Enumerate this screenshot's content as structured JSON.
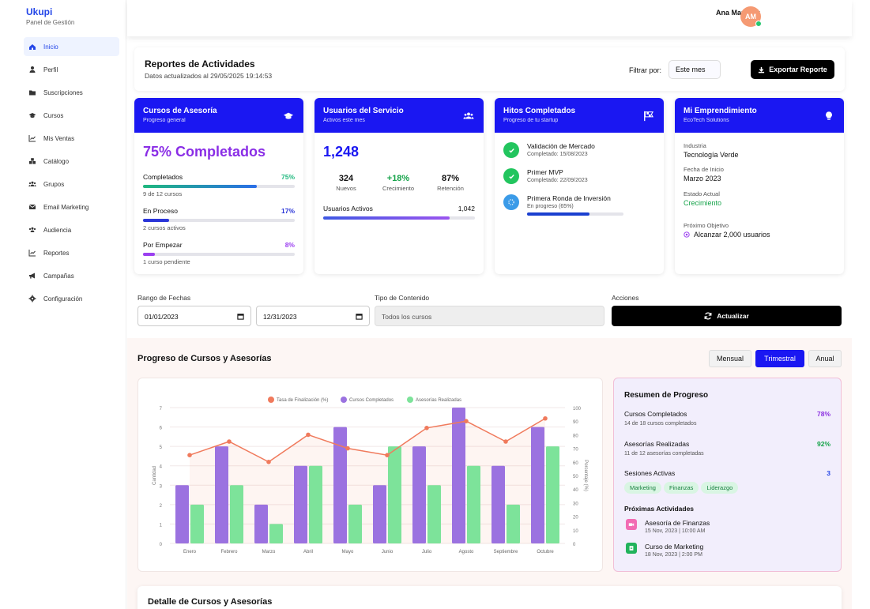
{
  "brand": {
    "name": "Ukupi",
    "subtitle": "Panel de Gestión"
  },
  "sidebar": {
    "items": [
      {
        "label": "Inicio",
        "icon": "home-icon",
        "active": true
      },
      {
        "label": "Perfil",
        "icon": "user-icon"
      },
      {
        "label": "Suscripciones",
        "icon": "folder-icon"
      },
      {
        "label": "Cursos",
        "icon": "graduation-cap-icon"
      },
      {
        "label": "Mis Ventas",
        "icon": "line-chart-icon"
      },
      {
        "label": "Catálogo",
        "icon": "boxes-icon"
      },
      {
        "label": "Grupos",
        "icon": "users-icon"
      },
      {
        "label": "Email Marketing",
        "icon": "envelope-icon"
      },
      {
        "label": "Audiencia",
        "icon": "audience-icon"
      },
      {
        "label": "Reportes",
        "icon": "chart-icon"
      },
      {
        "label": "Campañas",
        "icon": "megaphone-icon"
      },
      {
        "label": "Configuración",
        "icon": "gear-icon"
      }
    ]
  },
  "topbar": {
    "user_name": "Ana Martinez",
    "avatar_initials": "AM"
  },
  "header": {
    "title": "Reportes de Actividades",
    "updated": "Datos actualizados al 29/05/2025 19:14:53",
    "filter_label": "Filtrar por:",
    "filter_value": "Este mes",
    "export_label": "Exportar Reporte"
  },
  "cards": {
    "cursos": {
      "title": "Cursos de Asesoría",
      "subtitle": "Progreso general",
      "headline": "75% Completados",
      "rows": [
        {
          "label": "Completados",
          "pct": "75%",
          "value": 0.75,
          "sub": "9 de 12 cursos",
          "color": "#1fb87e"
        },
        {
          "label": "En Proceso",
          "pct": "17%",
          "value": 0.17,
          "sub": "2 cursos activos",
          "color": "#2a35d8"
        },
        {
          "label": "Por Empezar",
          "pct": "8%",
          "value": 0.08,
          "sub": "1 curso pendiente",
          "color": "#9b3ff0"
        }
      ]
    },
    "usuarios": {
      "title": "Usuarios del Servicio",
      "subtitle": "Activos este mes",
      "total": "1,248",
      "kpis": [
        {
          "value": "324",
          "label": "Nuevos"
        },
        {
          "value": "+18%",
          "label": "Crecimiento"
        },
        {
          "value": "87%",
          "label": "Retención"
        }
      ],
      "active_label": "Usuarios Activos",
      "active_value": "1,042",
      "active_ratio": 0.834
    },
    "hitos": {
      "title": "Hitos Completados",
      "subtitle": "Progreso de tu startup",
      "items": [
        {
          "label": "Validación de Mercado",
          "sub": "Completado: 15/08/2023",
          "done": true
        },
        {
          "label": "Primer MVP",
          "sub": "Completado: 22/09/2023",
          "done": true
        },
        {
          "label": "Primera Ronda de Inversión",
          "sub": "En progreso (65%)",
          "done": false,
          "progress": 0.65
        }
      ]
    },
    "empr": {
      "title": "Mi Emprendimiento",
      "subtitle": "EcoTech Solutions",
      "fields": [
        {
          "k": "Industria",
          "v": "Tecnología Verde"
        },
        {
          "k": "Fecha de Inicio",
          "v": "Marzo 2023"
        },
        {
          "k": "Estado Actual",
          "v": "Crecimiento"
        },
        {
          "k": "Próximo Objetivo",
          "v": "Alcanzar 2,000 usuarios"
        }
      ]
    }
  },
  "filters": {
    "range_label": "Rango de Fechas",
    "date_from": "01/01/2023",
    "date_to": "12/31/2023",
    "type_label": "Tipo de Contenido",
    "type_value": "Todos los cursos",
    "actions_label": "Acciones",
    "refresh_label": "Actualizar"
  },
  "progress": {
    "title": "Progreso de Cursos y Asesorías",
    "toggles": [
      "Mensual",
      "Trimestral",
      "Anual"
    ],
    "active_toggle": "Trimestral"
  },
  "chart_data": {
    "type": "bar",
    "categories": [
      "Enero",
      "Febrero",
      "Marzo",
      "Abril",
      "Mayo",
      "Junio",
      "Julio",
      "Agosto",
      "Septiembre",
      "Octubre"
    ],
    "series": [
      {
        "name": "Cursos Completados",
        "type": "bar",
        "color": "#9b72e0",
        "values": [
          3,
          5,
          2,
          4,
          6,
          3,
          5,
          7,
          4,
          6
        ]
      },
      {
        "name": "Asesorías Realizadas",
        "type": "bar",
        "color": "#7de39a",
        "values": [
          2,
          3,
          1,
          4,
          2,
          5,
          3,
          4,
          2,
          5
        ]
      },
      {
        "name": "Tasa de Finalización (%)",
        "type": "line",
        "color": "#f07a5c",
        "axis": "right",
        "values": [
          65,
          75,
          60,
          80,
          70,
          65,
          85,
          90,
          75,
          92
        ]
      }
    ],
    "ylabel": "Cantidad",
    "y2label": "Porcentaje (%)",
    "ylim": [
      0,
      7
    ],
    "y2lim": [
      0,
      100
    ],
    "yticks": [
      0,
      1,
      2,
      3,
      4,
      5,
      6,
      7
    ],
    "y2ticks": [
      0,
      10,
      20,
      30,
      40,
      50,
      60,
      70,
      80,
      90,
      100
    ],
    "legend": "top"
  },
  "summary": {
    "title": "Resumen de Progreso",
    "rows": [
      {
        "label": "Cursos Completados",
        "value": "78%",
        "sub": "14 de 18 cursos completados",
        "color": "#8b2fe0"
      },
      {
        "label": "Asesorías Realizadas",
        "value": "92%",
        "sub": "11 de 12 asesorías completadas",
        "color": "#16a34a"
      }
    ],
    "sessions_label": "Sesiones Activas",
    "sessions_value": "3",
    "chips": [
      "Marketing",
      "Finanzas",
      "Liderazgo"
    ],
    "next_title": "Próximas Actividades",
    "activities": [
      {
        "title": "Asesoría de Finanzas",
        "when": "15 Nov, 2023 | 10:00 AM",
        "color": "#f26bb3"
      },
      {
        "title": "Curso de Marketing",
        "when": "18 Nov, 2023 | 2:00 PM",
        "color": "#22b35c"
      }
    ]
  },
  "detail": {
    "title": "Detalle de Cursos y Asesorías"
  }
}
